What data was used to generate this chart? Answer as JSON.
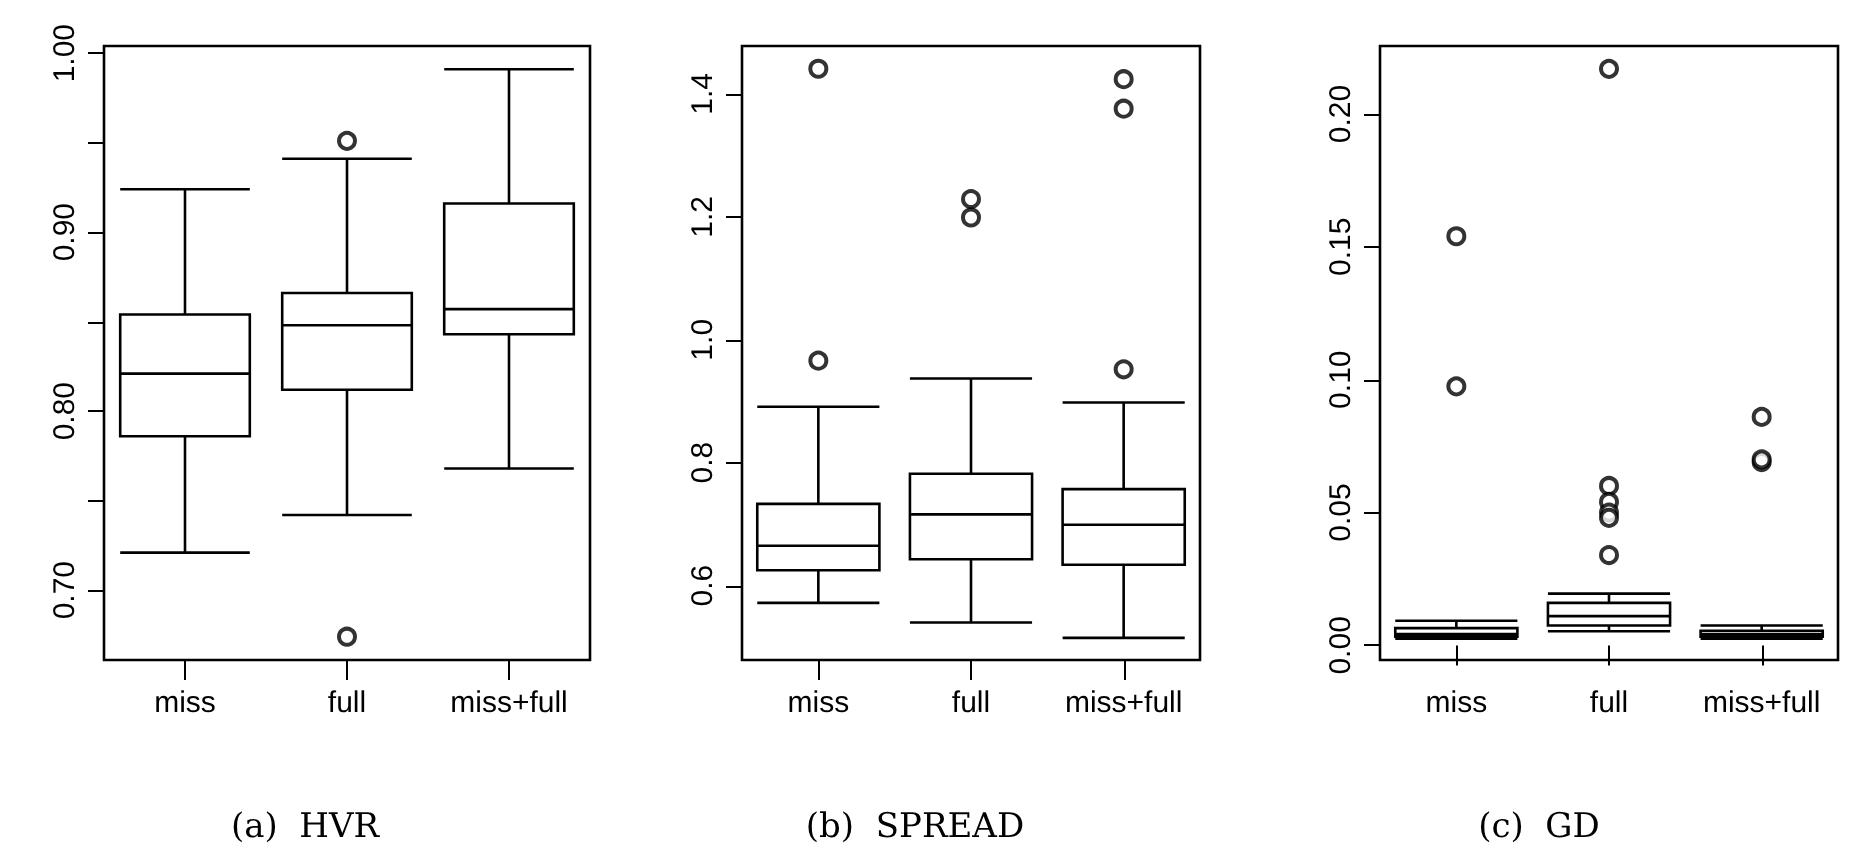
{
  "chart_data": [
    {
      "type": "box",
      "title": "(a)  HVR",
      "categories": [
        "miss",
        "full",
        "miss+full"
      ],
      "boxes": [
        {
          "low": 0.721,
          "q1": 0.786,
          "median": 0.821,
          "q3": 0.854,
          "high": 0.924
        },
        {
          "low": 0.742,
          "q1": 0.812,
          "median": 0.848,
          "q3": 0.866,
          "high": 0.941,
          "outliers": [
            0.951,
            0.674
          ]
        },
        {
          "low": 0.768,
          "q1": 0.843,
          "median": 0.857,
          "q3": 0.916,
          "high": 0.991
        }
      ],
      "ylim": [
        0.661,
        1.004
      ],
      "yticks": [
        {
          "value": 0.7,
          "label": "0.70"
        },
        {
          "value": 0.75,
          "label": null
        },
        {
          "value": 0.8,
          "label": "0.80"
        },
        {
          "value": 0.85,
          "label": null
        },
        {
          "value": 0.9,
          "label": "0.90"
        },
        {
          "value": 0.95,
          "label": null
        },
        {
          "value": 1.0,
          "label": "1.00"
        }
      ]
    },
    {
      "type": "box",
      "title": "(b)  SPREAD",
      "categories": [
        "miss",
        "full",
        "miss+full"
      ],
      "boxes": [
        {
          "low": 0.572,
          "q1": 0.625,
          "median": 0.665,
          "q3": 0.733,
          "high": 0.891,
          "outliers": [
            1.441,
            0.966
          ]
        },
        {
          "low": 0.54,
          "q1": 0.643,
          "median": 0.716,
          "q3": 0.782,
          "high": 0.937,
          "outliers": [
            1.229,
            1.199
          ]
        },
        {
          "low": 0.515,
          "q1": 0.634,
          "median": 0.699,
          "q3": 0.757,
          "high": 0.898,
          "outliers": [
            1.424,
            1.376,
            0.952
          ]
        }
      ],
      "ylim": [
        0.479,
        1.478
      ],
      "yticks": [
        0.6,
        0.8,
        {
          "value": 1.0,
          "label": "1.0"
        },
        1.2,
        1.4
      ]
    },
    {
      "type": "box",
      "title": "(c)  GD",
      "categories": [
        "miss",
        "full",
        "miss+full"
      ],
      "boxes": [
        {
          "low": 0.0025,
          "q1": 0.0033,
          "median": 0.0043,
          "q3": 0.0065,
          "high": 0.0093,
          "outliers": [
            0.154,
            0.0975
          ]
        },
        {
          "low": 0.0053,
          "q1": 0.0075,
          "median": 0.011,
          "q3": 0.016,
          "high": 0.0195,
          "outliers": [
            0.217,
            0.06,
            0.054,
            0.05,
            0.048,
            0.034
          ]
        },
        {
          "low": 0.0025,
          "q1": 0.0033,
          "median": 0.0043,
          "q3": 0.0055,
          "high": 0.0075,
          "outliers": [
            0.086,
            0.069,
            0.07
          ]
        }
      ],
      "ylim": [
        -0.0055,
        0.2256
      ],
      "yticks": [
        {
          "value": 0,
          "label": "0.00"
        },
        {
          "value": 0.05,
          "label": "0.05"
        },
        {
          "value": 0.1,
          "label": "0.10"
        },
        {
          "value": 0.15,
          "label": "0.15"
        },
        {
          "value": 0.2,
          "label": "0.20"
        }
      ]
    }
  ]
}
